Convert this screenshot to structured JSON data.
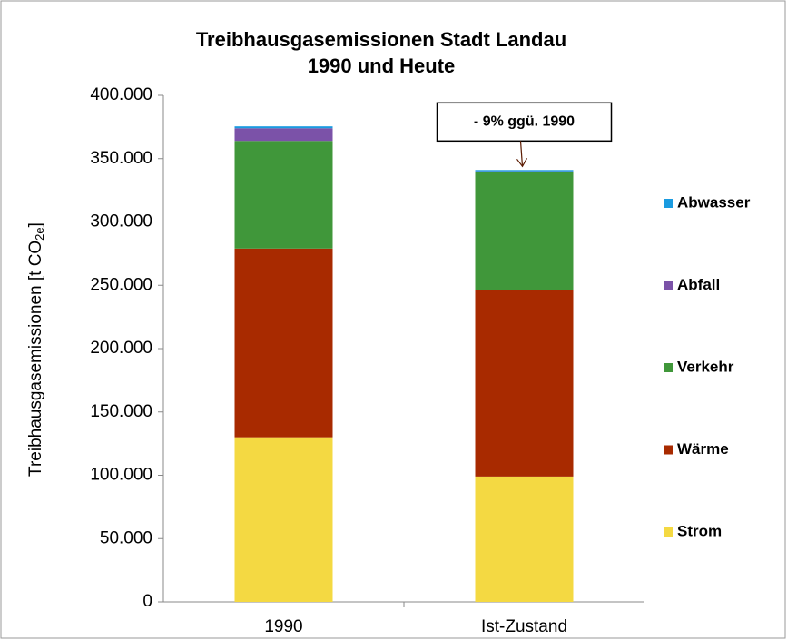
{
  "chart_data": {
    "type": "stacked_bar",
    "title": [
      "Treibhausgasemissionen  Stadt Landau",
      "1990 und Heute"
    ],
    "y_label": {
      "main": "Treibhausgasemissionen [t CO",
      "sub": "2e",
      "end": "]"
    },
    "categories": [
      "1990",
      "Ist-Zustand"
    ],
    "series": [
      {
        "name": "Strom",
        "color": "#f4d942",
        "values": [
          130000,
          99000
        ]
      },
      {
        "name": "Wärme",
        "color": "#a82a00",
        "values": [
          149000,
          147500
        ]
      },
      {
        "name": "Verkehr",
        "color": "#40973a",
        "values": [
          85000,
          93000
        ]
      },
      {
        "name": "Abfall",
        "color": "#7b52a8",
        "values": [
          10000,
          500
        ]
      },
      {
        "name": "Abwasser",
        "color": "#1a9be0",
        "values": [
          1500,
          1000
        ]
      }
    ],
    "ylim": [
      0,
      400000
    ],
    "yticks": [
      0,
      {
        "value": 50000,
        "label": "50.000"
      },
      {
        "value": 100000,
        "label": "100.000"
      },
      {
        "value": 150000,
        "label": "150.000"
      },
      {
        "value": 200000,
        "label": "200.000"
      },
      {
        "value": 250000,
        "label": "250.000"
      },
      {
        "value": 300000,
        "label": "300.000"
      },
      {
        "value": 350000,
        "label": "350.000"
      },
      {
        "value": 400000,
        "label": "400.000"
      }
    ],
    "annotation": "- 9% ggü. 1990",
    "legend": "right"
  }
}
